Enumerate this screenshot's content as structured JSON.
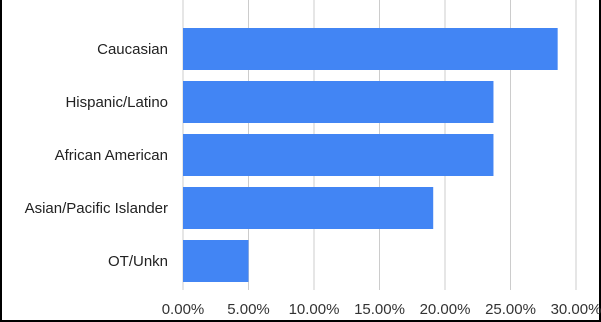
{
  "chart_data": {
    "type": "bar",
    "orientation": "horizontal",
    "title": "",
    "xlabel": "",
    "ylabel": "",
    "categories": [
      "Caucasian",
      "Hispanic/Latino",
      "African American",
      "Asian/Pacific Islander",
      "OT/Unkn"
    ],
    "values": [
      28.6,
      23.7,
      23.7,
      19.1,
      5.0
    ],
    "value_format": "percent",
    "xlim": [
      0,
      30
    ],
    "x_ticks": [
      "0.00%",
      "5.00%",
      "10.00%",
      "15.00%",
      "20.00%",
      "25.00%",
      "30.00%"
    ],
    "grid": "vertical",
    "legend": "none",
    "bar_color": "#4285F4",
    "grid_color": "#CCCCCC"
  }
}
